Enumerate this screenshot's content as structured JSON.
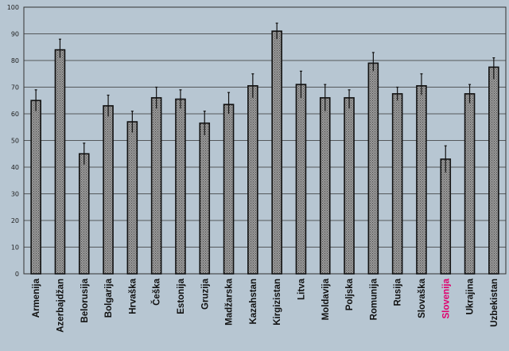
{
  "colors": {
    "background": "#b7c6d2",
    "plot_background": "#b7c6d2",
    "bar_fill": "#8f8f8f",
    "bar_stroke": "#111111",
    "gridline": "#333333",
    "label_default": "#111111",
    "label_highlight": "#e0006e"
  },
  "chart_data": {
    "type": "bar",
    "title": "",
    "xlabel": "",
    "ylabel": "",
    "ylim": [
      0,
      100
    ],
    "yticks": [
      0,
      10,
      20,
      30,
      40,
      50,
      60,
      70,
      80,
      90,
      100
    ],
    "grid": true,
    "legend": "none",
    "highlighted_category": "Slovenija",
    "categories": [
      "Armenija",
      "Azerbajdžan",
      "Belorusija",
      "Bolgarija",
      "Hrvaška",
      "Češka",
      "Estonija",
      "Gruzija",
      "Madžarska",
      "Kazahstan",
      "Kirgizistan",
      "Litva",
      "Moldavija",
      "Poljska",
      "Romunija",
      "Rusija",
      "Slovaška",
      "Slovenija",
      "Ukrajina",
      "Uzbekistan"
    ],
    "values": [
      65,
      84,
      45,
      63,
      57,
      66,
      65.5,
      56.5,
      63.5,
      70.5,
      91,
      71,
      66,
      66,
      79,
      67.5,
      70.5,
      43,
      67.5,
      77.5
    ],
    "error_low": [
      61,
      81,
      41,
      59,
      53,
      62,
      62,
      52,
      60,
      66,
      88,
      66,
      61,
      62,
      76,
      65,
      67,
      38,
      64,
      73
    ],
    "error_high": [
      69,
      88,
      49,
      67,
      61,
      70,
      69,
      61,
      68,
      75,
      94,
      76,
      71,
      69,
      83,
      70,
      75,
      48,
      71,
      81
    ]
  }
}
